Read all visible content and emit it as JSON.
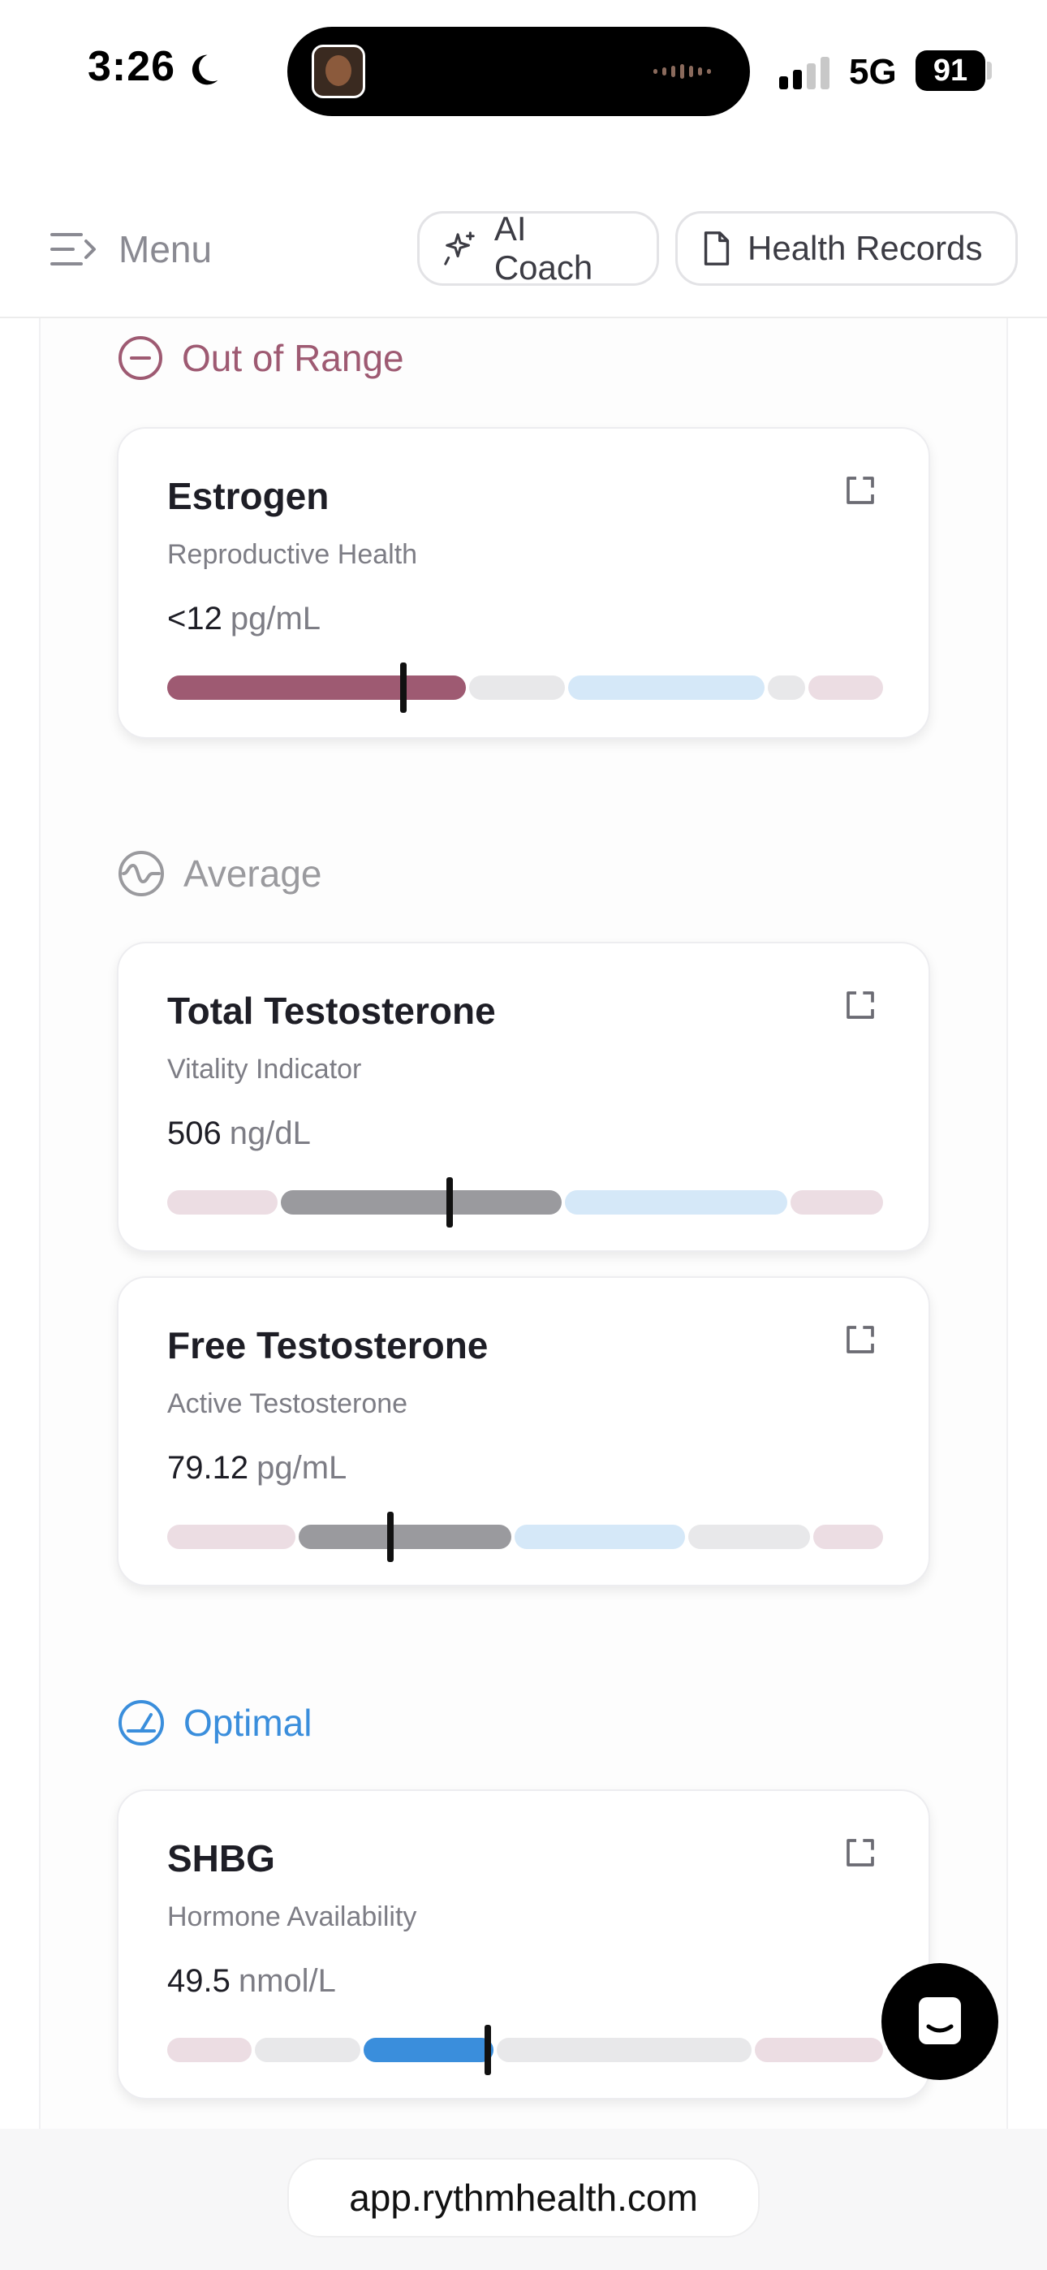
{
  "status_bar": {
    "time": "3:26",
    "network": "5G",
    "battery": "91"
  },
  "header": {
    "menu_label": "Menu",
    "ai_coach_label": "AI Coach",
    "health_records_label": "Health Records"
  },
  "colors": {
    "out_of_range": "#9e5a72",
    "average": "#9a9a9e",
    "optimal": "#3a8edc",
    "bar_pink": "#ecdde3",
    "bar_gray": "#e8e8ea",
    "bar_blue": "#d5e8f8"
  },
  "sections": {
    "out_of_range": {
      "title": "Out of Range",
      "icon": "minus-circle-icon"
    },
    "average": {
      "title": "Average",
      "icon": "wave-circle-icon"
    },
    "optimal": {
      "title": "Optimal",
      "icon": "gauge-circle-icon"
    }
  },
  "cards": {
    "estrogen": {
      "name": "Estrogen",
      "category": "Reproductive Health",
      "value": "<12",
      "unit": "pg/mL",
      "marker_position": 0.33
    },
    "total_testosterone": {
      "name": "Total Testosterone",
      "category": "Vitality Indicator",
      "value": "506",
      "unit": "ng/dL",
      "marker_position": 0.395
    },
    "free_testosterone": {
      "name": "Free Testosterone",
      "category": "Active Testosterone",
      "value": "79.12",
      "unit": "pg/mL",
      "marker_position": 0.312
    },
    "shbg": {
      "name": "SHBG",
      "category": "Hormone Availability",
      "value": "49.5",
      "unit": "nmol/L",
      "marker_position": 0.448
    }
  },
  "browser": {
    "url": "app.rythmhealth.com"
  }
}
